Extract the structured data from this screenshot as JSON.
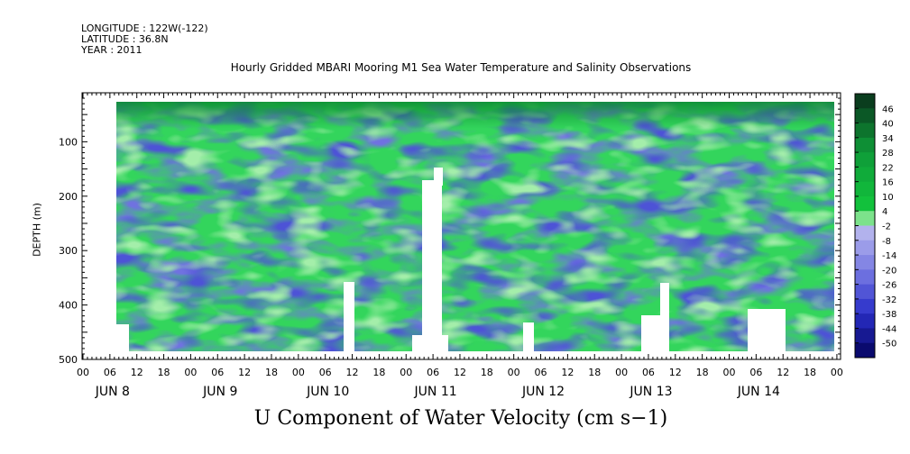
{
  "header": {
    "longitude": "LONGITUDE : 122W(-122)",
    "latitude": "LATITUDE : 36.8N",
    "year": "YEAR : 2011"
  },
  "colors": {
    "strong_positive": "#0a3d1e",
    "positive": "#12c23c",
    "weak_positive": "#a4eeaa",
    "weak_negative": "#b6b6ee",
    "negative": "#6f72e0",
    "strong_negative": "#0a0a6e"
  },
  "chart_data": {
    "type": "heatmap",
    "title": "Hourly Gridded MBARI Mooring M1 Sea Water Temperature and Salinity Observations",
    "subtitle": "U Component of Water Velocity (cm s−1)",
    "ylabel": "DEPTH (m)",
    "xlabel": "",
    "y_axis": {
      "range": [
        500,
        10
      ],
      "inverted": true,
      "ticks": [
        100,
        200,
        300,
        400,
        500
      ]
    },
    "x_axis": {
      "hour_ticks": [
        "00",
        "06",
        "12",
        "18",
        "00",
        "06",
        "12",
        "18",
        "00",
        "06",
        "12",
        "18",
        "00",
        "06",
        "12",
        "18",
        "00",
        "06",
        "12",
        "18",
        "00",
        "06",
        "12",
        "18",
        "00",
        "06",
        "12",
        "18",
        "00"
      ],
      "day_labels": [
        "JUN  8",
        "JUN  9",
        "JUN 10",
        "JUN 11",
        "JUN 12",
        "JUN 13",
        "JUN 14"
      ]
    },
    "colorbar": {
      "labels": [
        "46",
        "40",
        "34",
        "28",
        "22",
        "16",
        "10",
        "4",
        "-2",
        "-8",
        "-14",
        "-20",
        "-26",
        "-32",
        "-38",
        "-44",
        "-50"
      ]
    },
    "grid": false
  }
}
